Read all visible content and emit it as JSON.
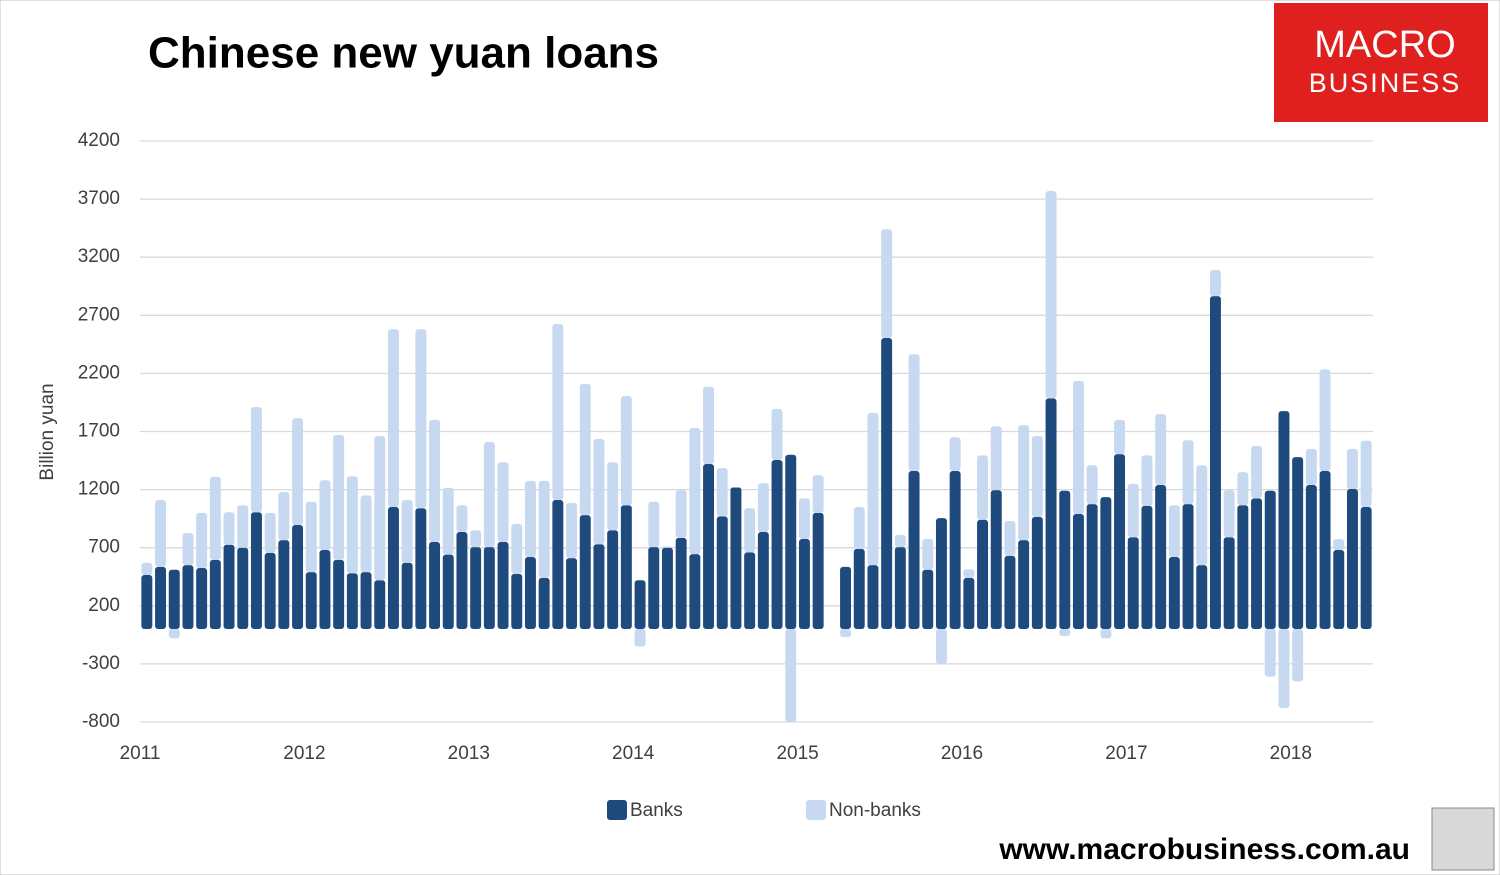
{
  "chart_data": {
    "type": "bar",
    "stacked": true,
    "title": "Chinese new yuan loans",
    "y_label": "Billion yuan",
    "categories": [
      "2011",
      null,
      null,
      null,
      null,
      null,
      null,
      null,
      null,
      null,
      null,
      null,
      "2012",
      null,
      null,
      null,
      null,
      null,
      null,
      null,
      null,
      null,
      null,
      null,
      "2013",
      null,
      null,
      null,
      null,
      null,
      null,
      null,
      null,
      null,
      null,
      null,
      "2014",
      null,
      null,
      null,
      null,
      null,
      null,
      null,
      null,
      null,
      null,
      null,
      "2015",
      null,
      null,
      null,
      null,
      null,
      null,
      null,
      null,
      null,
      null,
      null,
      "2016",
      null,
      null,
      null,
      null,
      null,
      null,
      null,
      null,
      null,
      null,
      null,
      "2017",
      null,
      null,
      null,
      null,
      null,
      null,
      null,
      null,
      null,
      null,
      null,
      "2018",
      null,
      null,
      null,
      null,
      null
    ],
    "series": [
      {
        "name": "Banks",
        "color": "#1f4a7e",
        "values": [
          465,
          535,
          510,
          550,
          525,
          595,
          725,
          700,
          1005,
          655,
          765,
          895,
          490,
          680,
          595,
          480,
          490,
          420,
          1050,
          570,
          1040,
          750,
          640,
          835,
          705,
          705,
          750,
          475,
          620,
          440,
          1110,
          610,
          980,
          730,
          850,
          1065,
          420,
          705,
          700,
          785,
          645,
          1420,
          970,
          1220,
          660,
          835,
          1455,
          1500,
          775,
          1000,
          null,
          535,
          690,
          550,
          2505,
          705,
          1360,
          510,
          955,
          1360,
          440,
          940,
          1195,
          630,
          765,
          965,
          1985,
          1190,
          990,
          1075,
          1135,
          1505,
          790,
          1060,
          1240,
          620,
          1075,
          550,
          2865,
          790,
          1065,
          1125,
          1190,
          1875,
          1480,
          1240,
          1360,
          680,
          1205,
          1050
        ]
      },
      {
        "name": "Non-banks",
        "color": "#c6d9f1",
        "values": [
          105,
          575,
          -80,
          275,
          475,
          715,
          280,
          365,
          905,
          345,
          415,
          920,
          605,
          600,
          1075,
          835,
          660,
          1240,
          1530,
          540,
          1540,
          1050,
          575,
          230,
          145,
          905,
          685,
          430,
          655,
          835,
          1515,
          475,
          1130,
          905,
          585,
          940,
          -150,
          390,
          10,
          410,
          1085,
          665,
          415,
          0,
          380,
          420,
          440,
          -800,
          350,
          325,
          null,
          -70,
          360,
          1310,
          935,
          105,
          1005,
          265,
          -300,
          290,
          75,
          555,
          550,
          300,
          990,
          695,
          1785,
          -60,
          1145,
          335,
          -80,
          295,
          460,
          435,
          610,
          445,
          550,
          860,
          225,
          405,
          285,
          450,
          -410,
          -680,
          -450,
          310,
          875,
          95,
          345,
          570
        ]
      }
    ],
    "ylim": [
      -800,
      4200
    ],
    "yticks": [
      -800,
      -300,
      200,
      700,
      1200,
      1700,
      2200,
      2700,
      3200,
      3700,
      4200
    ],
    "grid": true,
    "legend": "bottom"
  },
  "logo": {
    "line1": "MACRO",
    "line2": "BUSINESS"
  },
  "footer": "www.macrobusiness.com.au"
}
